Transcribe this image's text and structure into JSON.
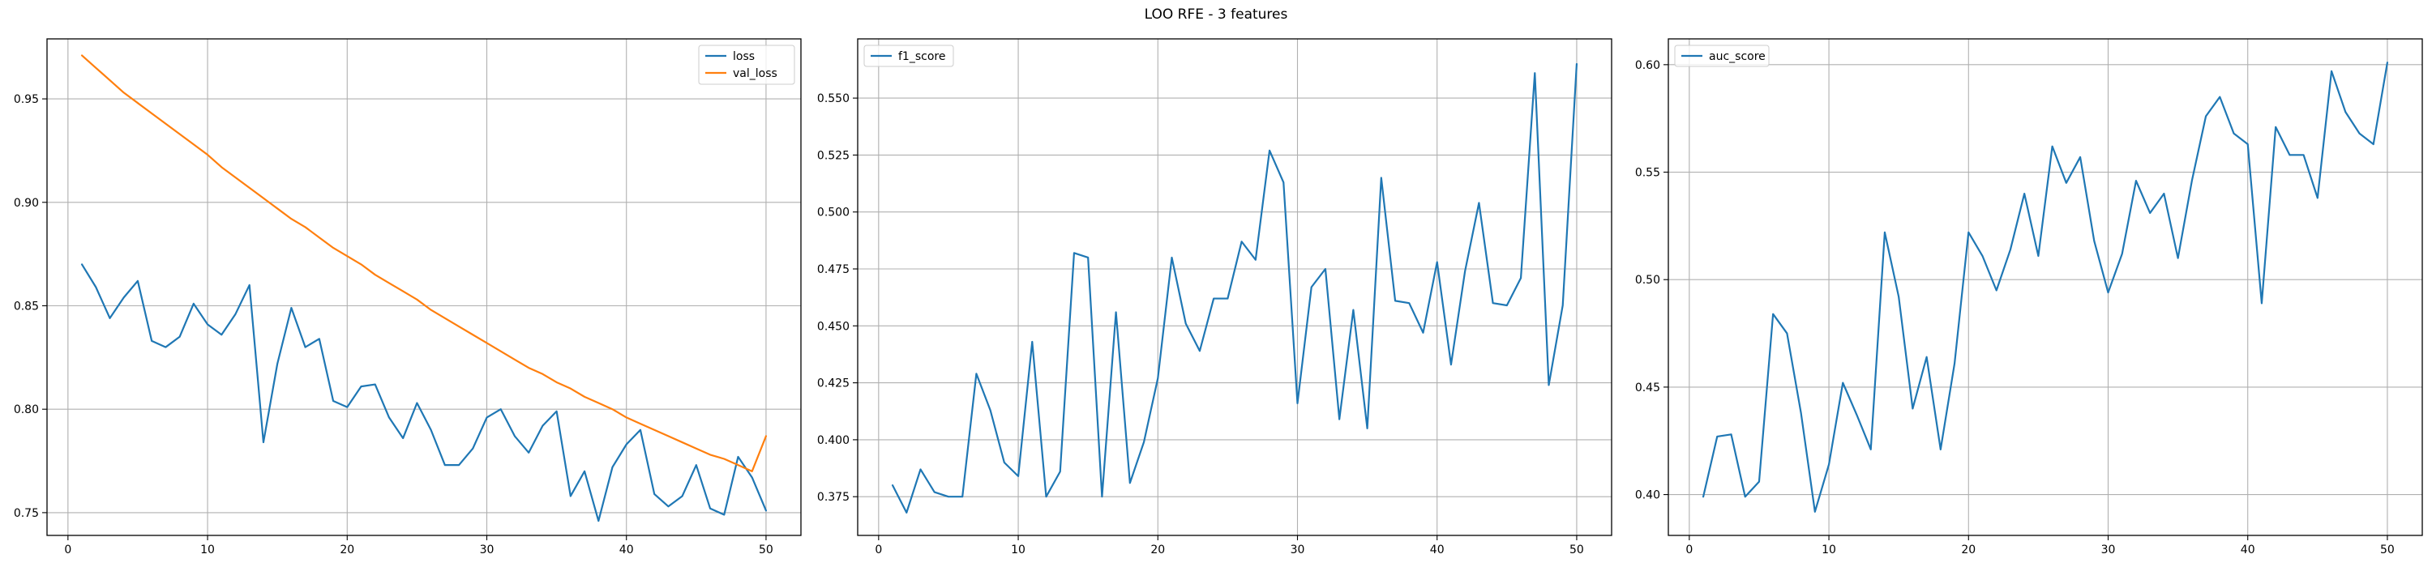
{
  "figure": {
    "title": "LOO RFE - 3 features"
  },
  "colors": {
    "series1": "#1f77b4",
    "series2": "#ff7f0e",
    "grid": "#b0b0b0",
    "axis": "#000000"
  },
  "chart_data": [
    {
      "type": "line",
      "title": "",
      "xlabel": "",
      "ylabel": "",
      "xlim": [
        -1.5,
        52.5
      ],
      "ylim": [
        0.739,
        0.979
      ],
      "xticks": [
        0,
        10,
        20,
        30,
        40,
        50
      ],
      "xtick_labels": [
        "0",
        "10",
        "20",
        "30",
        "40",
        "50"
      ],
      "yticks": [
        0.75,
        0.8,
        0.85,
        0.9,
        0.95
      ],
      "ytick_labels": [
        "0.75",
        "0.80",
        "0.85",
        "0.90",
        "0.95"
      ],
      "grid": true,
      "legend": "upper-right",
      "x": [
        1,
        2,
        3,
        4,
        5,
        6,
        7,
        8,
        9,
        10,
        11,
        12,
        13,
        14,
        15,
        16,
        17,
        18,
        19,
        20,
        21,
        22,
        23,
        24,
        25,
        26,
        27,
        28,
        29,
        30,
        31,
        32,
        33,
        34,
        35,
        36,
        37,
        38,
        39,
        40,
        41,
        42,
        43,
        44,
        45,
        46,
        47,
        48,
        49,
        50
      ],
      "series": [
        {
          "name": "loss",
          "color": "#1f77b4",
          "values": [
            0.87,
            0.859,
            0.844,
            0.854,
            0.862,
            0.833,
            0.83,
            0.835,
            0.851,
            0.841,
            0.836,
            0.846,
            0.86,
            0.784,
            0.822,
            0.849,
            0.83,
            0.834,
            0.804,
            0.801,
            0.811,
            0.812,
            0.796,
            0.786,
            0.803,
            0.79,
            0.773,
            0.773,
            0.781,
            0.796,
            0.8,
            0.787,
            0.779,
            0.792,
            0.799,
            0.758,
            0.77,
            0.746,
            0.772,
            0.783,
            0.79,
            0.759,
            0.753,
            0.758,
            0.773,
            0.752,
            0.749,
            0.777,
            0.767,
            0.751
          ]
        },
        {
          "name": "val_loss",
          "color": "#ff7f0e",
          "values": [
            0.971,
            0.965,
            0.959,
            0.953,
            0.948,
            0.943,
            0.938,
            0.933,
            0.928,
            0.923,
            0.917,
            0.912,
            0.907,
            0.902,
            0.897,
            0.892,
            0.888,
            0.883,
            0.878,
            0.874,
            0.87,
            0.865,
            0.861,
            0.857,
            0.853,
            0.848,
            0.844,
            0.84,
            0.836,
            0.832,
            0.828,
            0.824,
            0.82,
            0.817,
            0.813,
            0.81,
            0.806,
            0.803,
            0.8,
            0.796,
            0.793,
            0.79,
            0.787,
            0.784,
            0.781,
            0.778,
            0.776,
            0.773,
            0.77,
            0.787
          ]
        }
      ]
    },
    {
      "type": "line",
      "title": "",
      "xlabel": "",
      "ylabel": "",
      "xlim": [
        -1.5,
        52.5
      ],
      "ylim": [
        0.358,
        0.576
      ],
      "xticks": [
        0,
        10,
        20,
        30,
        40,
        50
      ],
      "xtick_labels": [
        "0",
        "10",
        "20",
        "30",
        "40",
        "50"
      ],
      "yticks": [
        0.375,
        0.4,
        0.425,
        0.45,
        0.475,
        0.5,
        0.525,
        0.55
      ],
      "ytick_labels": [
        "0.375",
        "0.400",
        "0.425",
        "0.450",
        "0.475",
        "0.500",
        "0.525",
        "0.550"
      ],
      "grid": true,
      "legend": "upper-left",
      "x": [
        1,
        2,
        3,
        4,
        5,
        6,
        7,
        8,
        9,
        10,
        11,
        12,
        13,
        14,
        15,
        16,
        17,
        18,
        19,
        20,
        21,
        22,
        23,
        24,
        25,
        26,
        27,
        28,
        29,
        30,
        31,
        32,
        33,
        34,
        35,
        36,
        37,
        38,
        39,
        40,
        41,
        42,
        43,
        44,
        45,
        46,
        47,
        48,
        49,
        50
      ],
      "series": [
        {
          "name": "f1_score",
          "color": "#1f77b4",
          "values": [
            0.38,
            0.368,
            0.387,
            0.377,
            0.375,
            0.375,
            0.429,
            0.413,
            0.39,
            0.384,
            0.443,
            0.375,
            0.386,
            0.482,
            0.48,
            0.375,
            0.456,
            0.381,
            0.399,
            0.427,
            0.48,
            0.451,
            0.439,
            0.462,
            0.462,
            0.487,
            0.479,
            0.527,
            0.513,
            0.416,
            0.467,
            0.475,
            0.409,
            0.457,
            0.405,
            0.515,
            0.461,
            0.46,
            0.447,
            0.478,
            0.433,
            0.474,
            0.504,
            0.46,
            0.459,
            0.471,
            0.561,
            0.424,
            0.459,
            0.565
          ]
        }
      ]
    },
    {
      "type": "line",
      "title": "",
      "xlabel": "",
      "ylabel": "",
      "xlim": [
        -1.5,
        52.5
      ],
      "ylim": [
        0.381,
        0.612
      ],
      "xticks": [
        0,
        10,
        20,
        30,
        40,
        50
      ],
      "xtick_labels": [
        "0",
        "10",
        "20",
        "30",
        "40",
        "50"
      ],
      "yticks": [
        0.4,
        0.45,
        0.5,
        0.55,
        0.6
      ],
      "ytick_labels": [
        "0.40",
        "0.45",
        "0.50",
        "0.55",
        "0.60"
      ],
      "grid": true,
      "legend": "upper-left",
      "x": [
        1,
        2,
        3,
        4,
        5,
        6,
        7,
        8,
        9,
        10,
        11,
        12,
        13,
        14,
        15,
        16,
        17,
        18,
        19,
        20,
        21,
        22,
        23,
        24,
        25,
        26,
        27,
        28,
        29,
        30,
        31,
        32,
        33,
        34,
        35,
        36,
        37,
        38,
        39,
        40,
        41,
        42,
        43,
        44,
        45,
        46,
        47,
        48,
        49,
        50
      ],
      "series": [
        {
          "name": "auc_score",
          "color": "#1f77b4",
          "values": [
            0.399,
            0.427,
            0.428,
            0.399,
            0.406,
            0.484,
            0.475,
            0.438,
            0.392,
            0.414,
            0.452,
            0.437,
            0.421,
            0.522,
            0.492,
            0.44,
            0.464,
            0.421,
            0.461,
            0.522,
            0.511,
            0.495,
            0.514,
            0.54,
            0.511,
            0.562,
            0.545,
            0.557,
            0.518,
            0.494,
            0.512,
            0.546,
            0.531,
            0.54,
            0.51,
            0.546,
            0.576,
            0.585,
            0.568,
            0.563,
            0.489,
            0.571,
            0.558,
            0.558,
            0.538,
            0.597,
            0.578,
            0.568,
            0.563,
            0.601
          ]
        }
      ]
    }
  ]
}
